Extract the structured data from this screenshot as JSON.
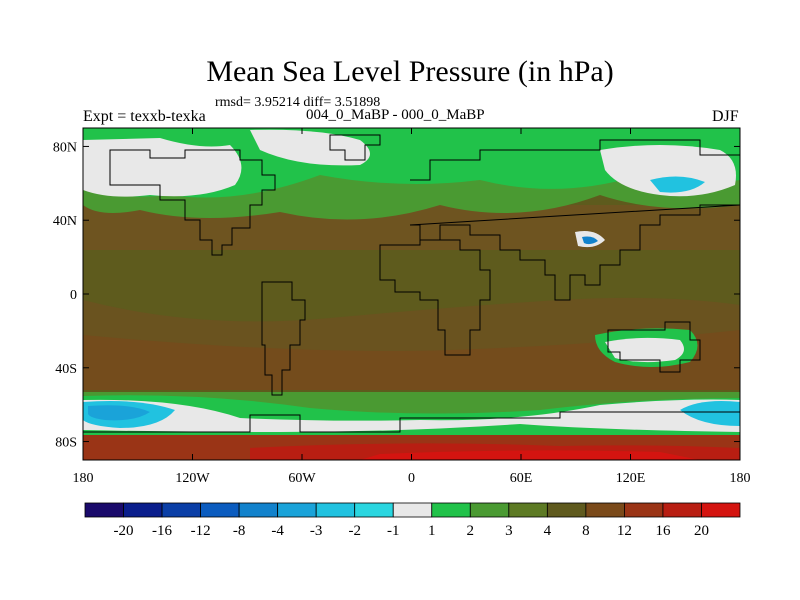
{
  "title": "Mean Sea Level Pressure (in hPa)",
  "stats": "rmsd= 3.95214 diff= 3.51898",
  "experiment": "Expt = texxb-texka",
  "subtitle": "004_0_MaBP - 000_0_MaBP",
  "season": "DJF",
  "axes": {
    "lat_ticks": [
      "80N",
      "40N",
      "0",
      "40S",
      "80S"
    ],
    "lon_ticks": [
      "180",
      "120W",
      "60W",
      "0",
      "60E",
      "120E",
      "180"
    ]
  },
  "colorbar": {
    "labels": [
      "-20",
      "-16",
      "-12",
      "-8",
      "-4",
      "-3",
      "-2",
      "-1",
      "1",
      "2",
      "3",
      "4",
      "8",
      "12",
      "16",
      "20"
    ],
    "colors": [
      "#1a0a6b",
      "#0a1e8c",
      "#0a3ea6",
      "#0b5cbf",
      "#1282cc",
      "#1aa3d9",
      "#21c2e0",
      "#2ad6e0",
      "#e8e8e8",
      "#21c24a",
      "#4a9a32",
      "#5d7a24",
      "#5f5a1e",
      "#7a4a1a",
      "#9a3416",
      "#b81e12",
      "#d41410"
    ]
  },
  "palette": {
    "background_land": "#5e5b1d",
    "mid_brown": "#7a4a1a",
    "light_green": "#21c24a",
    "mid_green": "#4a9a32",
    "white": "#e8e8e8",
    "cyan": "#21c2e0",
    "blue": "#1282cc",
    "dark_red": "#b81e12",
    "red": "#d41410"
  }
}
